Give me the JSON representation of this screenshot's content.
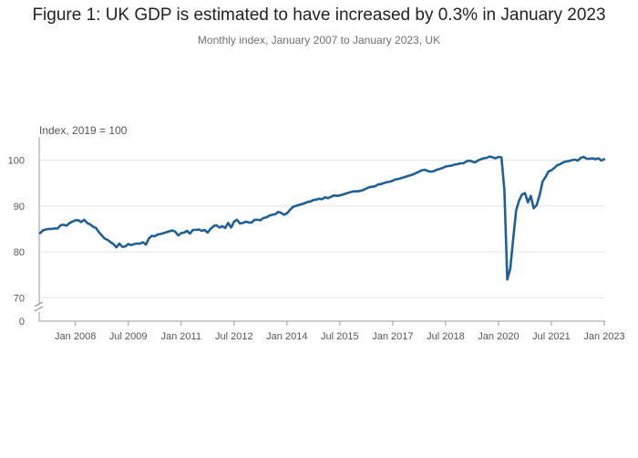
{
  "chart_data": {
    "type": "line",
    "title": "Figure 1: UK GDP is estimated to have increased by 0.3% in January 2023",
    "subtitle": "Monthly index, January 2007 to January 2023, UK",
    "ylabel": "Index, 2019 = 100",
    "xlabel": "",
    "ylim": [
      68,
      104
    ],
    "y_ticks": [
      "100",
      "90",
      "80",
      "70",
      "0"
    ],
    "x_ticks": [
      "Jan 2008",
      "Jul 2009",
      "Jan 2011",
      "Jul 2012",
      "Jan 2014",
      "Jul 2015",
      "Jan 2017",
      "Jul 2018",
      "Jan 2020",
      "Jul 2021",
      "Jan 2023"
    ],
    "axis_break": true,
    "grid": true,
    "legend": "none",
    "line_color": "#206095",
    "series": [
      {
        "x": [
          "2007-01",
          "2007-02",
          "2007-03",
          "2007-04",
          "2007-05",
          "2007-06",
          "2007-07",
          "2007-08",
          "2007-09",
          "2007-10",
          "2007-11",
          "2007-12",
          "2008-01",
          "2008-02",
          "2008-03",
          "2008-04",
          "2008-05",
          "2008-06",
          "2008-07",
          "2008-08",
          "2008-09",
          "2008-10",
          "2008-11",
          "2008-12",
          "2009-01",
          "2009-02",
          "2009-03",
          "2009-04",
          "2009-05",
          "2009-06",
          "2009-07",
          "2009-08",
          "2009-09",
          "2009-10",
          "2009-11",
          "2009-12",
          "2010-01",
          "2010-02",
          "2010-03",
          "2010-04",
          "2010-05",
          "2010-06",
          "2010-07",
          "2010-08",
          "2010-09",
          "2010-10",
          "2010-11",
          "2010-12",
          "2011-01",
          "2011-02",
          "2011-03",
          "2011-04",
          "2011-05",
          "2011-06",
          "2011-07",
          "2011-08",
          "2011-09",
          "2011-10",
          "2011-11",
          "2011-12",
          "2012-01",
          "2012-02",
          "2012-03",
          "2012-04",
          "2012-05",
          "2012-06",
          "2012-07",
          "2012-08",
          "2012-09",
          "2012-10",
          "2012-11",
          "2012-12",
          "2013-01",
          "2013-02",
          "2013-03",
          "2013-04",
          "2013-05",
          "2013-06",
          "2013-07",
          "2013-08",
          "2013-09",
          "2013-10",
          "2013-11",
          "2013-12",
          "2014-01",
          "2014-02",
          "2014-03",
          "2014-04",
          "2014-05",
          "2014-06",
          "2014-07",
          "2014-08",
          "2014-09",
          "2014-10",
          "2014-11",
          "2014-12",
          "2015-01",
          "2015-02",
          "2015-03",
          "2015-04",
          "2015-05",
          "2015-06",
          "2015-07",
          "2015-08",
          "2015-09",
          "2015-10",
          "2015-11",
          "2015-12",
          "2016-01",
          "2016-02",
          "2016-03",
          "2016-04",
          "2016-05",
          "2016-06",
          "2016-07",
          "2016-08",
          "2016-09",
          "2016-10",
          "2016-11",
          "2016-12",
          "2017-01",
          "2017-02",
          "2017-03",
          "2017-04",
          "2017-05",
          "2017-06",
          "2017-07",
          "2017-08",
          "2017-09",
          "2017-10",
          "2017-11",
          "2017-12",
          "2018-01",
          "2018-02",
          "2018-03",
          "2018-04",
          "2018-05",
          "2018-06",
          "2018-07",
          "2018-08",
          "2018-09",
          "2018-10",
          "2018-11",
          "2018-12",
          "2019-01",
          "2019-02",
          "2019-03",
          "2019-04",
          "2019-05",
          "2019-06",
          "2019-07",
          "2019-08",
          "2019-09",
          "2019-10",
          "2019-11",
          "2019-12",
          "2020-01",
          "2020-02",
          "2020-03",
          "2020-04",
          "2020-05",
          "2020-06",
          "2020-07",
          "2020-08",
          "2020-09",
          "2020-10",
          "2020-11",
          "2020-12",
          "2021-01",
          "2021-02",
          "2021-03",
          "2021-04",
          "2021-05",
          "2021-06",
          "2021-07",
          "2021-08",
          "2021-09",
          "2021-10",
          "2021-11",
          "2021-12",
          "2022-01",
          "2022-02",
          "2022-03",
          "2022-04",
          "2022-05",
          "2022-06",
          "2022-07",
          "2022-08",
          "2022-09",
          "2022-10",
          "2022-11",
          "2022-12",
          "2023-01"
        ],
        "values": [
          84.1,
          84.7,
          84.9,
          85.0,
          85.0,
          85.1,
          85.1,
          85.8,
          85.9,
          85.7,
          86.3,
          86.6,
          86.9,
          86.9,
          86.5,
          87.0,
          86.3,
          86.0,
          85.5,
          85.2,
          84.3,
          83.6,
          82.9,
          82.6,
          82.1,
          81.7,
          81.0,
          81.8,
          81.1,
          81.2,
          81.7,
          81.5,
          81.7,
          81.8,
          81.8,
          82.1,
          81.6,
          82.9,
          83.5,
          83.4,
          83.8,
          83.9,
          84.1,
          84.3,
          84.5,
          84.7,
          84.4,
          83.6,
          84.1,
          84.2,
          84.6,
          84.0,
          84.8,
          84.8,
          84.9,
          84.6,
          84.8,
          84.2,
          85.0,
          85.6,
          85.8,
          85.3,
          85.6,
          85.2,
          86.3,
          85.3,
          86.6,
          87.0,
          86.2,
          86.3,
          86.6,
          86.4,
          86.4,
          87.0,
          87.0,
          86.9,
          87.4,
          87.5,
          87.9,
          88.1,
          88.2,
          88.7,
          88.5,
          88.1,
          88.4,
          89.1,
          89.8,
          90.0,
          90.2,
          90.4,
          90.6,
          90.9,
          91.0,
          91.3,
          91.4,
          91.6,
          91.5,
          91.9,
          91.7,
          92.0,
          92.3,
          92.2,
          92.3,
          92.5,
          92.7,
          92.9,
          93.1,
          93.2,
          93.2,
          93.3,
          93.5,
          93.8,
          94.1,
          94.2,
          94.3,
          94.7,
          94.8,
          95.0,
          95.2,
          95.3,
          95.5,
          95.8,
          95.9,
          96.1,
          96.3,
          96.5,
          96.7,
          96.9,
          97.2,
          97.5,
          97.8,
          97.9,
          97.6,
          97.5,
          97.6,
          97.9,
          98.1,
          98.3,
          98.6,
          98.7,
          98.8,
          99.0,
          99.1,
          99.3,
          99.3,
          99.7,
          99.9,
          99.7,
          99.5,
          99.9,
          100.2,
          100.4,
          100.5,
          100.8,
          100.6,
          100.4,
          100.7,
          100.6,
          93.5,
          74.0,
          76.3,
          82.9,
          89.0,
          91.2,
          92.5,
          92.8,
          90.8,
          92.2,
          89.5,
          90.2,
          92.4,
          95.3,
          96.3,
          97.5,
          97.8,
          98.3,
          98.9,
          99.1,
          99.5,
          99.7,
          99.8,
          100.0,
          100.1,
          99.9,
          100.5,
          100.7,
          100.3,
          100.3,
          100.4,
          100.2,
          100.4,
          99.9,
          100.2
        ]
      }
    ]
  }
}
